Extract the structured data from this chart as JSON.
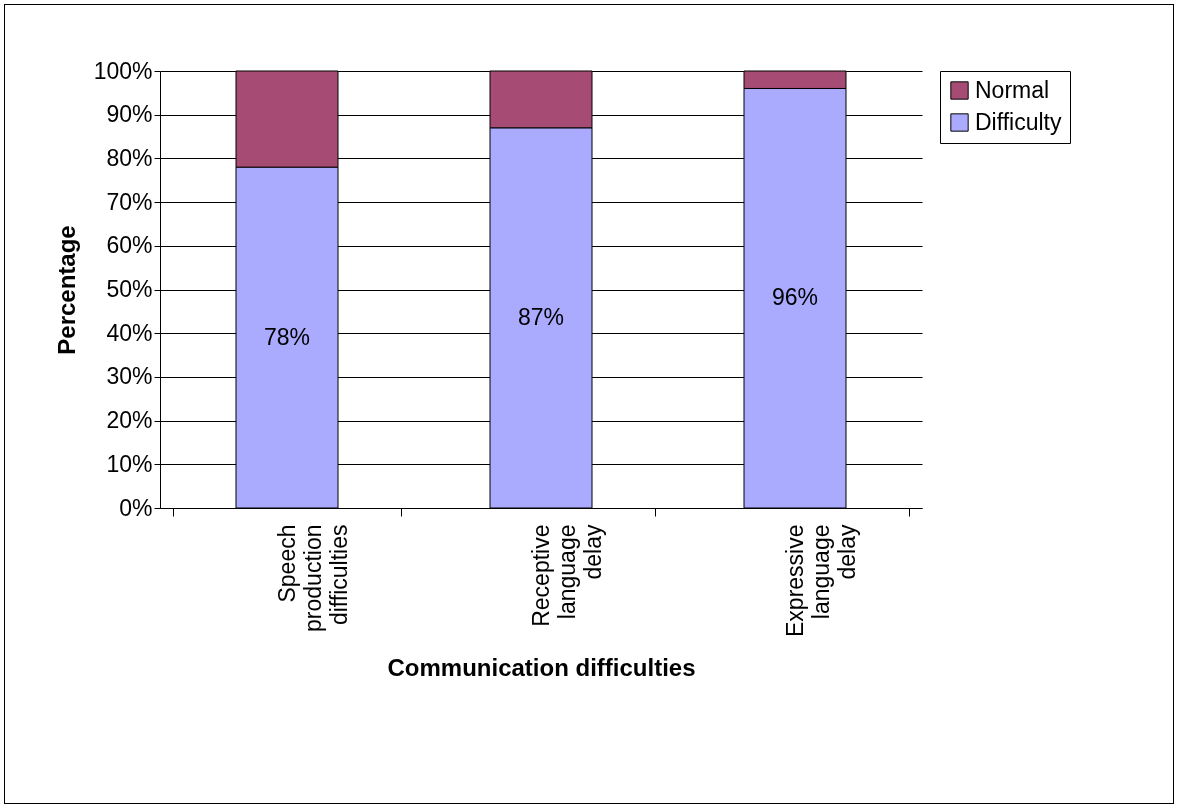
{
  "chart_data": {
    "type": "bar",
    "stacked": true,
    "xlabel": "Communication difficulties",
    "ylabel": "Percentage",
    "categories": [
      "Speech production difficulties",
      "Receptive language delay",
      "Expressive language delay"
    ],
    "series": [
      {
        "name": "Difficulty",
        "color": "#aaabff",
        "values": [
          78,
          87,
          96
        ],
        "value_labels": [
          "78%",
          "87%",
          "96%"
        ]
      },
      {
        "name": "Normal",
        "color": "#a64c74",
        "values": [
          22,
          13,
          4
        ]
      }
    ],
    "ylim": [
      0,
      100
    ],
    "yticks": [
      {
        "value": 0,
        "label": "0%"
      },
      {
        "value": 10,
        "label": "10%"
      },
      {
        "value": 20,
        "label": "20%"
      },
      {
        "value": 30,
        "label": "30%"
      },
      {
        "value": 40,
        "label": "40%"
      },
      {
        "value": 50,
        "label": "50%"
      },
      {
        "value": 60,
        "label": "60%"
      },
      {
        "value": 70,
        "label": "70%"
      },
      {
        "value": 80,
        "label": "80%"
      },
      {
        "value": 90,
        "label": "90%"
      },
      {
        "value": 100,
        "label": "100%"
      }
    ],
    "grid": "y",
    "legend": "right"
  }
}
